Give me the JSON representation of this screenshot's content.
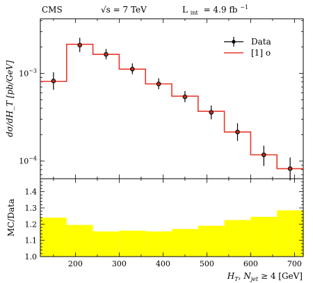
{
  "header": {
    "experiment": "CMS",
    "energy_prefix": "√s = 7 TeV",
    "lumi_prefix": "L",
    "lumi_sub": "int",
    "lumi_value": "= 4.9 fb",
    "lumi_exp": "−1"
  },
  "chart_data": [
    {
      "type": "line",
      "role": "main-panel",
      "ylabel": "dσ/dH_T [pb/GeV]",
      "yscale": "log",
      "ylim": [
        6.3e-05,
        0.0042
      ],
      "xlim": [
        120,
        720
      ],
      "yticks": [
        {
          "value": 0.001,
          "base": "10",
          "exp": "−3"
        },
        {
          "value": 0.0001,
          "base": "10",
          "exp": "−4"
        }
      ],
      "legend": {
        "position": "top-right",
        "entries": [
          {
            "label": "Data",
            "style": "marker"
          },
          {
            "label": "[1] o",
            "style": "line",
            "color": "#e8372a"
          }
        ]
      },
      "bin_edges": [
        120,
        180,
        240,
        300,
        360,
        420,
        480,
        540,
        600,
        660,
        720
      ],
      "mc_values": [
        0.00081,
        0.00215,
        0.00165,
        0.00112,
        0.00076,
        0.00055,
        0.00037,
        0.000215,
        0.000118,
        8.2e-05
      ],
      "data": {
        "x": [
          150,
          210,
          270,
          330,
          390,
          450,
          510,
          570,
          630,
          690
        ],
        "y": [
          0.00082,
          0.0021,
          0.00165,
          0.00112,
          0.00076,
          0.00054,
          0.00036,
          0.000215,
          0.000118,
          8.2e-05
        ],
        "err_low": [
          0.00065,
          0.00175,
          0.00145,
          0.00098,
          0.00066,
          0.00047,
          0.0003,
          0.00017,
          8.8e-05,
          6e-05
        ],
        "err_high": [
          0.00103,
          0.00255,
          0.0019,
          0.0013,
          0.00088,
          0.00063,
          0.00043,
          0.00027,
          0.00015,
          0.00011
        ]
      },
      "colors": {
        "mc_line": "#e8372a",
        "data_marker": "#000000",
        "data_fill": "#b03020"
      }
    },
    {
      "type": "area",
      "role": "ratio-panel",
      "ylabel": "MC/Data",
      "xlabel_parts": {
        "ht": "H",
        "ht_sub": "T",
        "sep": ", ",
        "n": "N",
        "n_sub": "jet",
        "cond": " ≥ 4 [GeV]"
      },
      "xlim": [
        120,
        720
      ],
      "ylim": [
        1.0,
        1.48
      ],
      "yticks": [
        1.0,
        1.1,
        1.2,
        1.3,
        1.4
      ],
      "xticks": [
        200,
        300,
        400,
        500,
        600,
        700
      ],
      "bin_edges": [
        120,
        180,
        240,
        300,
        360,
        420,
        480,
        540,
        600,
        660,
        720
      ],
      "ratio": [
        1.24,
        1.195,
        1.155,
        1.16,
        1.155,
        1.17,
        1.19,
        1.225,
        1.245,
        1.285
      ],
      "colors": {
        "band": "#ffff00"
      }
    }
  ]
}
